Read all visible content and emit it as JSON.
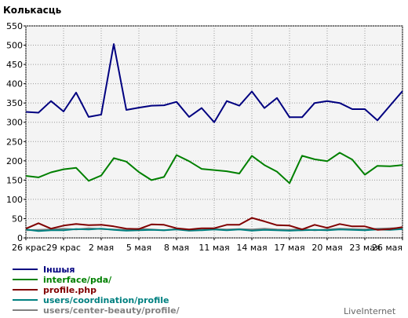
{
  "chart_data": {
    "type": "line",
    "title": "Колькасць",
    "ylim": [
      0,
      550
    ],
    "yticks": [
      0,
      50,
      100,
      150,
      200,
      250,
      300,
      350,
      400,
      450,
      500,
      550
    ],
    "xtick_labels": [
      "26 крас",
      "29 крас",
      "2 мая",
      "5 мая",
      "8 мая",
      "11 мая",
      "14 мая",
      "17 мая",
      "20 мая",
      "23 мая",
      "26 мая"
    ],
    "xtick_index": [
      0,
      3,
      6,
      9,
      12,
      15,
      18,
      21,
      24,
      27,
      30
    ],
    "grid": true,
    "series": [
      {
        "name": "Іншыя",
        "color": "#000080",
        "values": [
          327,
          325,
          355,
          328,
          377,
          314,
          320,
          503,
          332,
          338,
          343,
          344,
          353,
          314,
          337,
          300,
          355,
          343,
          380,
          337,
          363,
          313,
          313,
          350,
          355,
          350,
          334,
          334,
          305,
          343,
          381
        ]
      },
      {
        "name": "interface/pda/",
        "color": "#008000",
        "values": [
          161,
          157,
          170,
          178,
          182,
          148,
          162,
          207,
          198,
          171,
          150,
          158,
          215,
          199,
          179,
          176,
          173,
          167,
          213,
          189,
          172,
          142,
          213,
          204,
          199,
          221,
          203,
          164,
          187,
          186,
          189
        ]
      },
      {
        "name": "profile.php",
        "color": "#800000",
        "values": [
          24,
          38,
          24,
          32,
          36,
          33,
          34,
          30,
          24,
          23,
          35,
          34,
          25,
          22,
          25,
          25,
          34,
          34,
          52,
          43,
          33,
          32,
          22,
          34,
          26,
          36,
          30,
          30,
          21,
          23,
          28
        ]
      },
      {
        "name": "users/coordination/profile",
        "color": "#008080",
        "values": [
          22,
          18,
          20,
          20,
          23,
          22,
          24,
          21,
          19,
          20,
          21,
          20,
          22,
          19,
          20,
          22,
          20,
          22,
          19,
          21,
          20,
          19,
          20,
          21,
          20,
          22,
          21,
          20,
          22,
          21,
          23
        ]
      },
      {
        "name": "users/center-beauty/profile/",
        "color": "#808080",
        "values": [
          20,
          21,
          22,
          24,
          22,
          25,
          23,
          22,
          21,
          24,
          22,
          20,
          23,
          21,
          21,
          23,
          22,
          23,
          22,
          24,
          22,
          21,
          23,
          20,
          22,
          24,
          23,
          22,
          24,
          25,
          26
        ]
      }
    ]
  },
  "brand": "LiveInternet"
}
